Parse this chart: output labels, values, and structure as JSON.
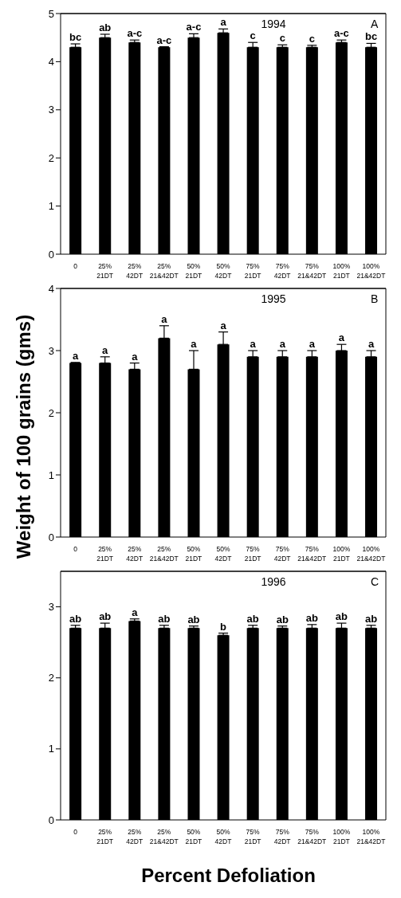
{
  "chart_data": [
    {
      "type": "bar",
      "categories": [
        "0",
        "25% 21DT",
        "25% 42DT",
        "25% 21&42DT",
        "50% 21DT",
        "50% 42DT",
        "75% 21DT",
        "75% 42DT",
        "75% 21&42DT",
        "100% 21DT",
        "100% 21&42DT"
      ],
      "values": [
        4.3,
        4.5,
        4.4,
        4.3,
        4.5,
        4.6,
        4.3,
        4.3,
        4.3,
        4.4,
        4.3
      ],
      "errors": [
        [
          4.3,
          4.37
        ],
        [
          4.5,
          4.57
        ],
        [
          4.4,
          4.45
        ],
        [
          4.3,
          4.31
        ],
        [
          4.5,
          4.58
        ],
        [
          4.6,
          4.68
        ],
        [
          4.3,
          4.4
        ],
        [
          4.3,
          4.35
        ],
        [
          4.3,
          4.34
        ],
        [
          4.4,
          4.45
        ],
        [
          4.3,
          4.38
        ]
      ],
      "value_labels": [
        "bc",
        "ab",
        "a-c",
        "a-c",
        "a-c",
        "a",
        "c",
        "c",
        "c",
        "a-c",
        "bc"
      ],
      "color": "#000000",
      "ylim": [
        0,
        5
      ],
      "yticks": [
        0,
        1,
        2,
        3,
        4,
        5
      ],
      "grid": false,
      "annotations": [
        "1994",
        "A"
      ]
    },
    {
      "type": "bar",
      "ylabel": "Weight of 100 grains (gms)",
      "categories": [
        "0",
        "25% 21DT",
        "25% 42DT",
        "25% 21&42DT",
        "50% 21DT",
        "50% 42DT",
        "75% 21DT",
        "75% 42DT",
        "75% 21&42DT",
        "100% 21DT",
        "100% 21&42DT"
      ],
      "values": [
        2.8,
        2.8,
        2.7,
        3.2,
        2.7,
        3.1,
        2.9,
        2.9,
        2.9,
        3.0,
        2.9
      ],
      "errors": [
        [
          2.8,
          2.81
        ],
        [
          2.8,
          2.9
        ],
        [
          2.7,
          2.8
        ],
        [
          3.2,
          3.4
        ],
        [
          2.7,
          3.0
        ],
        [
          3.1,
          3.3
        ],
        [
          2.9,
          3.0
        ],
        [
          2.9,
          3.0
        ],
        [
          2.9,
          3.0
        ],
        [
          3.0,
          3.1
        ],
        [
          2.9,
          3.0
        ]
      ],
      "value_labels": [
        "a",
        "a",
        "a",
        "a",
        "a",
        "a",
        "a",
        "a",
        "a",
        "a",
        "a"
      ],
      "color": "#000000",
      "ylim": [
        0,
        4
      ],
      "yticks": [
        0,
        1,
        2,
        3,
        4
      ],
      "grid": false,
      "annotations": [
        "1995",
        "B"
      ]
    },
    {
      "type": "bar",
      "xlabel": "Percent Defoliation",
      "categories": [
        "0",
        "25% 21DT",
        "25% 42DT",
        "25% 21&42DT",
        "50% 21DT",
        "50% 42DT",
        "75% 21DT",
        "75% 42DT",
        "75% 21&42DT",
        "100% 21DT",
        "100% 21&42DT"
      ],
      "values": [
        2.7,
        2.7,
        2.8,
        2.7,
        2.7,
        2.6,
        2.7,
        2.7,
        2.7,
        2.7,
        2.7
      ],
      "errors": [
        [
          2.7,
          2.74
        ],
        [
          2.7,
          2.77
        ],
        [
          2.8,
          2.83
        ],
        [
          2.7,
          2.74
        ],
        [
          2.7,
          2.73
        ],
        [
          2.6,
          2.63
        ],
        [
          2.7,
          2.74
        ],
        [
          2.7,
          2.73
        ],
        [
          2.7,
          2.75
        ],
        [
          2.7,
          2.77
        ],
        [
          2.7,
          2.74
        ]
      ],
      "value_labels": [
        "ab",
        "ab",
        "a",
        "ab",
        "ab",
        "b",
        "ab",
        "ab",
        "ab",
        "ab",
        "ab"
      ],
      "color": "#000000",
      "ylim": [
        0,
        3.5
      ],
      "yticks": [
        0,
        1,
        2,
        3
      ],
      "grid": false,
      "annotations": [
        "1996",
        "C"
      ]
    }
  ]
}
